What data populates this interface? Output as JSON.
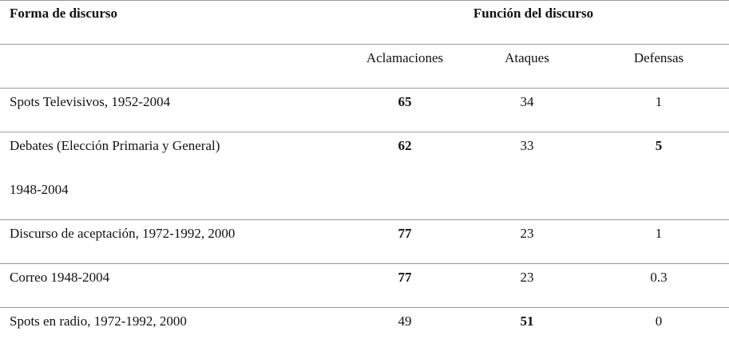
{
  "header": {
    "row_label": "Forma de discurso",
    "group_label": "Función del discurso",
    "columns": [
      "Aclamaciones",
      "Ataques",
      "Defensas"
    ]
  },
  "table": {
    "rows": [
      {
        "label": [
          "Spots Televisivos, 1952-2004"
        ],
        "values": [
          65,
          34,
          1
        ],
        "bold": [
          true,
          false,
          false
        ]
      },
      {
        "label": [
          "Debates (Elección Primaria y General)",
          "1948-2004"
        ],
        "values": [
          62,
          33,
          5
        ],
        "bold": [
          true,
          false,
          true
        ]
      },
      {
        "label": [
          "Discurso de aceptación, 1972-1992, 2000"
        ],
        "values": [
          77,
          23,
          1
        ],
        "bold": [
          true,
          false,
          false
        ]
      },
      {
        "label": [
          "Correo 1948-2004"
        ],
        "values": [
          77,
          23,
          0.3
        ],
        "bold": [
          true,
          false,
          false
        ]
      },
      {
        "label": [
          "Spots en radio, 1972-1992, 2000"
        ],
        "values": [
          49,
          51,
          0
        ],
        "bold": [
          false,
          true,
          false
        ]
      }
    ]
  }
}
